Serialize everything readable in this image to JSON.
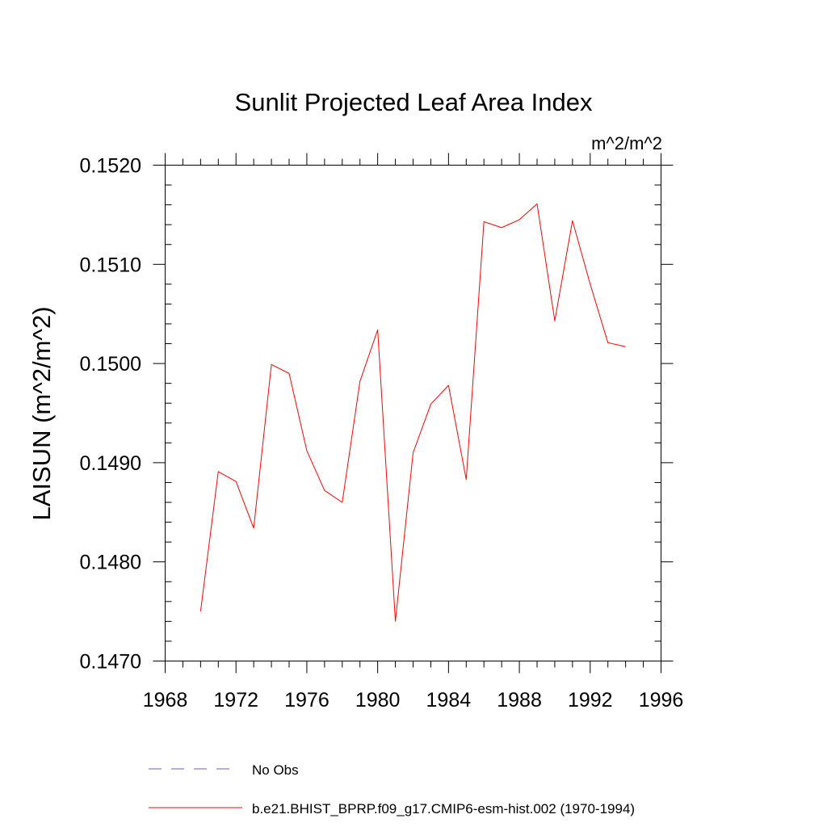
{
  "chart_data": {
    "type": "line",
    "title": "Sunlit Projected Leaf Area Index",
    "units_label": "m^2/m^2",
    "ylabel": "LAISUN  (m^2/m^2)",
    "xlabel": "",
    "xlim": [
      1968,
      1996
    ],
    "ylim": [
      0.147,
      0.152
    ],
    "x_ticks": [
      1968,
      1972,
      1976,
      1980,
      1984,
      1988,
      1992,
      1996
    ],
    "y_ticks": [
      "0.1470",
      "0.1480",
      "0.1490",
      "0.1500",
      "0.1510",
      "0.1520"
    ],
    "grid": false,
    "legend_position": "bottom",
    "series": [
      {
        "name": "No Obs",
        "style": "dashed",
        "color": "#6a5acd",
        "x": [],
        "values": []
      },
      {
        "name": "b.e21.BHIST_BPRP.f09_g17.CMIP6-esm-hist.002 (1970-1994)",
        "style": "solid",
        "color": "#ff0000",
        "x": [
          1970,
          1971,
          1972,
          1973,
          1974,
          1975,
          1976,
          1977,
          1978,
          1979,
          1980,
          1981,
          1982,
          1983,
          1984,
          1985,
          1986,
          1987,
          1988,
          1989,
          1990,
          1991,
          1992,
          1993,
          1994
        ],
        "values": [
          0.1475,
          0.14891,
          0.14881,
          0.14834,
          0.14999,
          0.1499,
          0.14912,
          0.14872,
          0.1486,
          0.14982,
          0.15034,
          0.1474,
          0.1491,
          0.14959,
          0.14978,
          0.14883,
          0.15143,
          0.15137,
          0.15145,
          0.15161,
          0.15043,
          0.15144,
          0.1508,
          0.15021,
          0.15017
        ]
      }
    ]
  }
}
